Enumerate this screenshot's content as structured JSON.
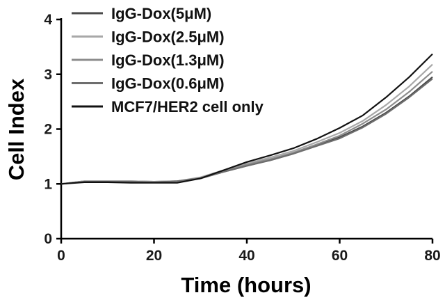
{
  "chart_data": {
    "type": "line",
    "title": "",
    "xlabel": "Time (hours)",
    "ylabel": "Cell Index",
    "xlim": [
      0,
      80
    ],
    "ylim": [
      0,
      4
    ],
    "xticks": [
      "0",
      "20",
      "40",
      "60",
      "80"
    ],
    "yticks": [
      "0",
      "1",
      "2",
      "3",
      "4"
    ],
    "grid": false,
    "legend_position": "top-left",
    "x": [
      0,
      5,
      10,
      15,
      20,
      25,
      30,
      35,
      40,
      45,
      50,
      55,
      60,
      65,
      70,
      75,
      80
    ],
    "series": [
      {
        "name": "IgG-Dox(5μM)",
        "color": "#4a4a4a",
        "values": [
          1.0,
          1.05,
          1.05,
          1.05,
          1.04,
          1.05,
          1.1,
          1.22,
          1.33,
          1.43,
          1.55,
          1.7,
          1.85,
          2.05,
          2.3,
          2.6,
          2.95
        ]
      },
      {
        "name": "IgG-Dox(2.5μM)",
        "color": "#a8a8a8",
        "values": [
          1.0,
          1.05,
          1.05,
          1.05,
          1.04,
          1.05,
          1.12,
          1.25,
          1.37,
          1.48,
          1.6,
          1.76,
          1.93,
          2.15,
          2.44,
          2.78,
          3.18
        ]
      },
      {
        "name": "IgG-Dox(1.3μM)",
        "color": "#8c8c8c",
        "values": [
          1.0,
          1.04,
          1.04,
          1.04,
          1.03,
          1.05,
          1.11,
          1.23,
          1.35,
          1.45,
          1.57,
          1.72,
          1.88,
          2.1,
          2.36,
          2.68,
          3.05
        ]
      },
      {
        "name": "IgG-Dox(0.6μM)",
        "color": "#6e6e6e",
        "values": [
          1.0,
          1.04,
          1.04,
          1.04,
          1.03,
          1.05,
          1.1,
          1.22,
          1.33,
          1.43,
          1.55,
          1.69,
          1.83,
          2.03,
          2.28,
          2.58,
          2.92
        ]
      },
      {
        "name": "MCF7/HER2 cell only",
        "color": "#111111",
        "values": [
          1.0,
          1.03,
          1.03,
          1.02,
          1.02,
          1.02,
          1.1,
          1.25,
          1.4,
          1.52,
          1.65,
          1.82,
          2.02,
          2.25,
          2.58,
          2.95,
          3.37
        ]
      }
    ]
  }
}
